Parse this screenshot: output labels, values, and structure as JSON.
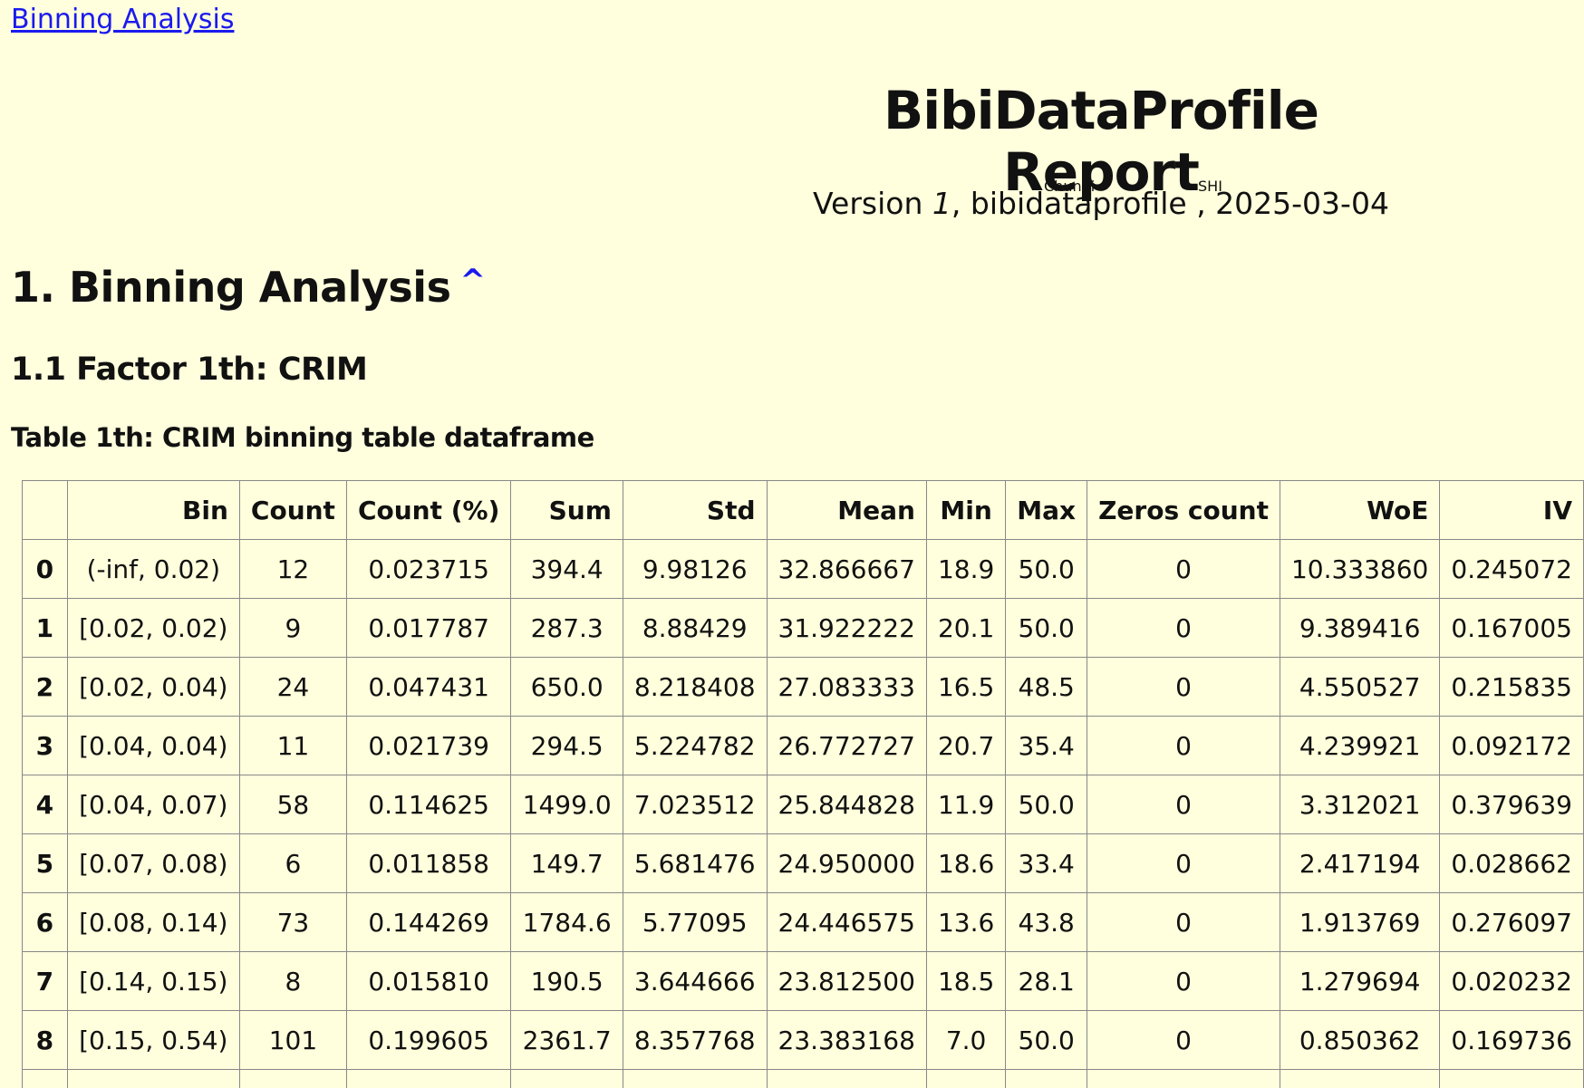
{
  "nav": {
    "top_link": "Binning Analysis"
  },
  "header": {
    "title": "BibiDataProfile Report",
    "version_label": "Version",
    "version_num": "1",
    "package": "bibidataprofile",
    "author_first": "Chunqi",
    "author_last": "SHI",
    "date": ", 2025-03-04"
  },
  "section": {
    "title": "1. Binning Analysis",
    "caret": "^",
    "subsection": "1.1 Factor 1th: CRIM",
    "caption": "Table 1th: CRIM binning table dataframe"
  },
  "table": {
    "columns": [
      "",
      "Bin",
      "Count",
      "Count (%)",
      "Sum",
      "Std",
      "Mean",
      "Min",
      "Max",
      "Zeros count",
      "WoE",
      "IV"
    ],
    "rows": [
      [
        "0",
        "(-inf, 0.02)",
        "12",
        "0.023715",
        "394.4",
        "9.98126",
        "32.866667",
        "18.9",
        "50.0",
        "0",
        "10.333860",
        "0.245072"
      ],
      [
        "1",
        "[0.02, 0.02)",
        "9",
        "0.017787",
        "287.3",
        "8.88429",
        "31.922222",
        "20.1",
        "50.0",
        "0",
        "9.389416",
        "0.167005"
      ],
      [
        "2",
        "[0.02, 0.04)",
        "24",
        "0.047431",
        "650.0",
        "8.218408",
        "27.083333",
        "16.5",
        "48.5",
        "0",
        "4.550527",
        "0.215835"
      ],
      [
        "3",
        "[0.04, 0.04)",
        "11",
        "0.021739",
        "294.5",
        "5.224782",
        "26.772727",
        "20.7",
        "35.4",
        "0",
        "4.239921",
        "0.092172"
      ],
      [
        "4",
        "[0.04, 0.07)",
        "58",
        "0.114625",
        "1499.0",
        "7.023512",
        "25.844828",
        "11.9",
        "50.0",
        "0",
        "3.312021",
        "0.379639"
      ],
      [
        "5",
        "[0.07, 0.08)",
        "6",
        "0.011858",
        "149.7",
        "5.681476",
        "24.950000",
        "18.6",
        "33.4",
        "0",
        "2.417194",
        "0.028662"
      ],
      [
        "6",
        "[0.08, 0.14)",
        "73",
        "0.144269",
        "1784.6",
        "5.77095",
        "24.446575",
        "13.6",
        "43.8",
        "0",
        "1.913769",
        "0.276097"
      ],
      [
        "7",
        "[0.14, 0.15)",
        "8",
        "0.015810",
        "190.5",
        "3.644666",
        "23.812500",
        "18.5",
        "28.1",
        "0",
        "1.279694",
        "0.020232"
      ],
      [
        "8",
        "[0.15, 0.54)",
        "101",
        "0.199605",
        "2361.7",
        "8.357768",
        "23.383168",
        "7.0",
        "50.0",
        "0",
        "0.850362",
        "0.169736"
      ],
      [
        "",
        "",
        "",
        "",
        "",
        "",
        "",
        "",
        "",
        "",
        "",
        ""
      ]
    ]
  }
}
